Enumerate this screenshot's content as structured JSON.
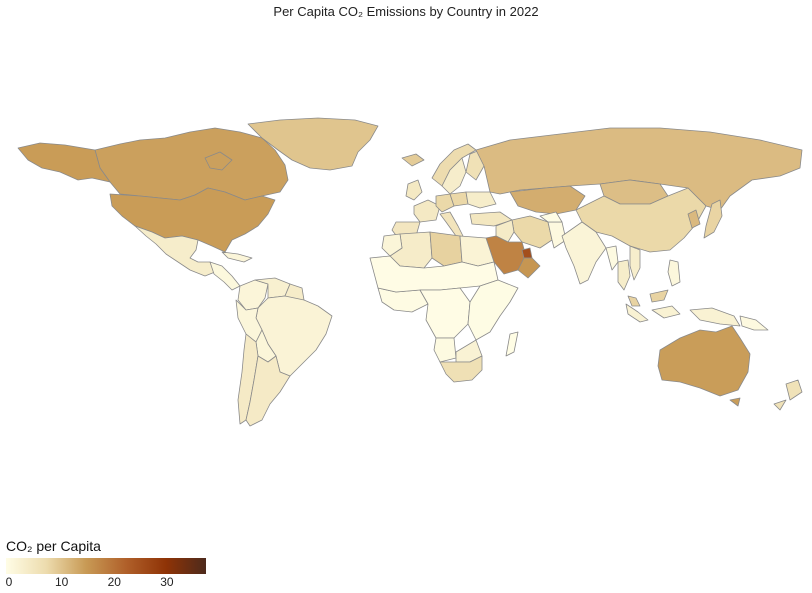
{
  "title": "Per Capita CO₂ Emissions by Country in 2022",
  "legend": {
    "title": "CO₂ per Capita",
    "ticks": [
      0,
      10,
      20,
      30
    ],
    "range": [
      0,
      38
    ],
    "colors": [
      "#fffde6",
      "#eddcae",
      "#c89a55",
      "#b0602a",
      "#8f3306",
      "#4d2a1c"
    ]
  },
  "colors": {
    "border": "#8a8a8a",
    "ocean": "#ffffff"
  },
  "chart_data": {
    "type": "choropleth",
    "title": "Per Capita CO₂ Emissions by Country in 2022",
    "color_variable": "CO₂ per Capita",
    "year": 2022,
    "regions": [
      {
        "name": "Canada",
        "value": 14.5
      },
      {
        "name": "United States",
        "value": 15.0
      },
      {
        "name": "Greenland",
        "value": 10.3
      },
      {
        "name": "Alaska",
        "value": 15.0
      },
      {
        "name": "Mexico",
        "value": 3.6
      },
      {
        "name": "Central America",
        "value": 1.2
      },
      {
        "name": "Cuba",
        "value": 1.8
      },
      {
        "name": "Colombia",
        "value": 1.8
      },
      {
        "name": "Venezuela",
        "value": 3.0
      },
      {
        "name": "Guyana",
        "value": 4.0
      },
      {
        "name": "Brazil",
        "value": 2.2
      },
      {
        "name": "Peru",
        "value": 1.6
      },
      {
        "name": "Bolivia",
        "value": 1.7
      },
      {
        "name": "Chile",
        "value": 4.3
      },
      {
        "name": "Argentina",
        "value": 4.4
      },
      {
        "name": "Iceland",
        "value": 9.5
      },
      {
        "name": "Norway",
        "value": 7.5
      },
      {
        "name": "Sweden",
        "value": 3.6
      },
      {
        "name": "Finland",
        "value": 6.5
      },
      {
        "name": "United Kingdom",
        "value": 4.7
      },
      {
        "name": "France",
        "value": 4.6
      },
      {
        "name": "Spain",
        "value": 5.2
      },
      {
        "name": "Germany",
        "value": 8.0
      },
      {
        "name": "Poland",
        "value": 8.1
      },
      {
        "name": "Italy",
        "value": 5.7
      },
      {
        "name": "Ukraine",
        "value": 3.8
      },
      {
        "name": "Turkey",
        "value": 5.1
      },
      {
        "name": "Russia",
        "value": 11.4
      },
      {
        "name": "Kazakhstan",
        "value": 13.0
      },
      {
        "name": "Mongolia",
        "value": 11.0
      },
      {
        "name": "China",
        "value": 8.0
      },
      {
        "name": "Korea",
        "value": 11.6
      },
      {
        "name": "Japan",
        "value": 8.5
      },
      {
        "name": "Iran",
        "value": 8.0
      },
      {
        "name": "Iraq",
        "value": 4.2
      },
      {
        "name": "Saudi Arabia",
        "value": 18.2
      },
      {
        "name": "United Arab Emirates",
        "value": 25.8
      },
      {
        "name": "Oman",
        "value": 15.7
      },
      {
        "name": "Pakistan",
        "value": 0.9
      },
      {
        "name": "Afghanistan",
        "value": 0.3
      },
      {
        "name": "India",
        "value": 2.0
      },
      {
        "name": "Myanmar",
        "value": 0.7
      },
      {
        "name": "Thailand",
        "value": 3.8
      },
      {
        "name": "Vietnam",
        "value": 3.5
      },
      {
        "name": "Malaysia",
        "value": 8.6
      },
      {
        "name": "Indonesia",
        "value": 2.6
      },
      {
        "name": "Philippines",
        "value": 1.3
      },
      {
        "name": "Papua New Guinea",
        "value": 0.9
      },
      {
        "name": "Australia",
        "value": 14.9
      },
      {
        "name": "New Zealand",
        "value": 6.2
      },
      {
        "name": "Algeria",
        "value": 3.9
      },
      {
        "name": "Libya",
        "value": 8.8
      },
      {
        "name": "Egypt",
        "value": 2.3
      },
      {
        "name": "Morocco",
        "value": 1.9
      },
      {
        "name": "West Africa",
        "value": 0.4
      },
      {
        "name": "Sahel",
        "value": 0.2
      },
      {
        "name": "Central Africa",
        "value": 0.2
      },
      {
        "name": "East Africa",
        "value": 0.3
      },
      {
        "name": "Angola",
        "value": 0.7
      },
      {
        "name": "Botswana",
        "value": 2.5
      },
      {
        "name": "South Africa",
        "value": 6.7
      },
      {
        "name": "Madagascar",
        "value": 0.1
      }
    ]
  }
}
